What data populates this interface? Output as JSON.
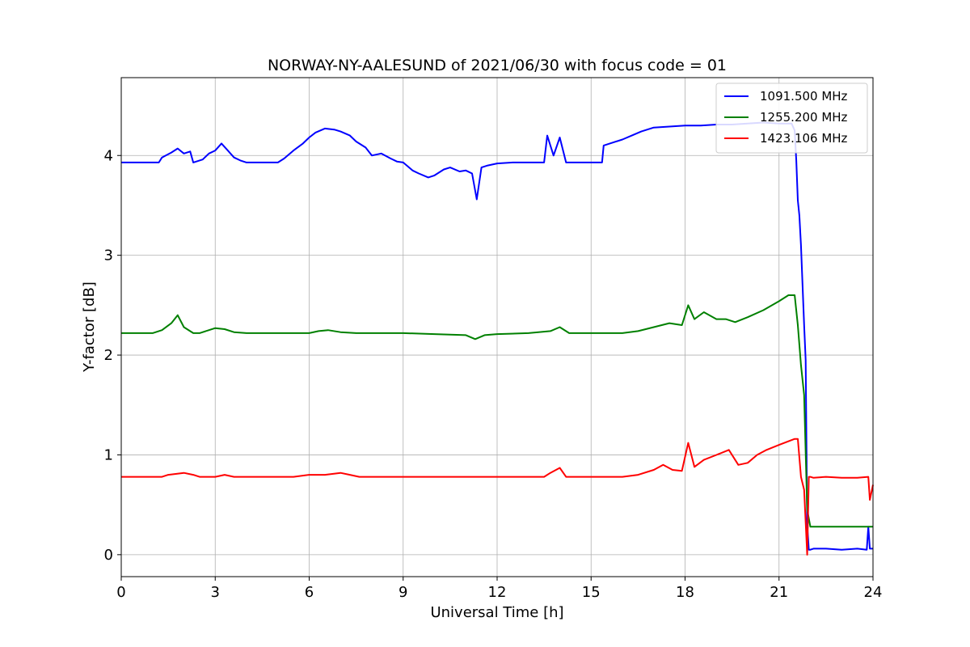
{
  "chart_data": {
    "type": "line",
    "title": "NORWAY-NY-AALESUND of 2021/06/30 with focus code = 01",
    "xlabel": "Universal Time [h]",
    "ylabel": "Y-factor [dB]",
    "xlim": [
      0,
      24
    ],
    "ylim": [
      -0.22,
      4.78
    ],
    "xticks": [
      0,
      3,
      6,
      9,
      12,
      15,
      18,
      21,
      24
    ],
    "yticks": [
      0,
      1,
      2,
      3,
      4
    ],
    "grid": true,
    "legend_position": "top-right",
    "series": [
      {
        "name": "1091.500 MHz",
        "color": "#0000ff",
        "x": [
          0,
          1.2,
          1.3,
          1.6,
          1.8,
          2.0,
          2.2,
          2.3,
          2.4,
          2.6,
          2.8,
          3.0,
          3.2,
          3.4,
          3.6,
          3.8,
          4.0,
          4.5,
          5.0,
          5.2,
          5.5,
          5.8,
          6.0,
          6.2,
          6.5,
          6.8,
          7.0,
          7.3,
          7.5,
          7.8,
          8.0,
          8.3,
          8.6,
          8.8,
          9.0,
          9.3,
          9.5,
          9.8,
          10.0,
          10.3,
          10.5,
          10.8,
          11.0,
          11.2,
          11.35,
          11.5,
          11.7,
          12.0,
          12.5,
          13.0,
          13.5,
          13.6,
          13.8,
          14.0,
          14.2,
          14.5,
          15.0,
          15.35,
          15.4,
          15.6,
          16.0,
          16.3,
          16.6,
          17.0,
          17.5,
          18.0,
          18.5,
          19.0,
          19.5,
          20.0,
          20.5,
          21.0,
          21.4,
          21.5,
          21.55,
          21.6,
          21.65,
          21.7,
          21.8,
          21.85,
          21.9,
          21.95,
          22.0,
          22.1,
          22.5,
          23.0,
          23.5,
          23.8,
          23.85,
          23.9,
          24.0
        ],
        "y": [
          3.93,
          3.93,
          3.98,
          4.03,
          4.07,
          4.02,
          4.04,
          3.93,
          3.94,
          3.96,
          4.02,
          4.05,
          4.12,
          4.05,
          3.98,
          3.95,
          3.93,
          3.93,
          3.93,
          3.97,
          4.05,
          4.12,
          4.18,
          4.23,
          4.27,
          4.26,
          4.24,
          4.2,
          4.14,
          4.08,
          4.0,
          4.02,
          3.97,
          3.94,
          3.93,
          3.85,
          3.82,
          3.78,
          3.8,
          3.86,
          3.88,
          3.84,
          3.85,
          3.82,
          3.56,
          3.88,
          3.9,
          3.92,
          3.93,
          3.93,
          3.93,
          4.2,
          4.0,
          4.18,
          3.93,
          3.93,
          3.93,
          3.93,
          4.1,
          4.12,
          4.16,
          4.2,
          4.24,
          4.28,
          4.29,
          4.3,
          4.3,
          4.31,
          4.31,
          4.32,
          4.33,
          4.32,
          4.32,
          4.25,
          3.95,
          3.55,
          3.4,
          3.1,
          2.3,
          1.95,
          0.3,
          0.05,
          0.05,
          0.06,
          0.06,
          0.05,
          0.06,
          0.05,
          0.28,
          0.06,
          0.06
        ]
      },
      {
        "name": "1255.200 MHz",
        "color": "#008000",
        "x": [
          0,
          1.0,
          1.3,
          1.6,
          1.8,
          2.0,
          2.3,
          2.5,
          2.8,
          3.0,
          3.3,
          3.6,
          4.0,
          5.0,
          6.0,
          6.3,
          6.6,
          7.0,
          7.5,
          8.0,
          9.0,
          10.0,
          11.0,
          11.3,
          11.6,
          12.0,
          13.0,
          13.7,
          14.0,
          14.3,
          15.0,
          16.0,
          16.5,
          17.0,
          17.5,
          17.9,
          18.1,
          18.3,
          18.6,
          19.0,
          19.3,
          19.6,
          20.0,
          20.5,
          21.0,
          21.3,
          21.5,
          21.6,
          21.7,
          21.8,
          21.9,
          22.0,
          23.0,
          24.0
        ],
        "y": [
          2.22,
          2.22,
          2.25,
          2.32,
          2.4,
          2.28,
          2.22,
          2.22,
          2.25,
          2.27,
          2.26,
          2.23,
          2.22,
          2.22,
          2.22,
          2.24,
          2.25,
          2.23,
          2.22,
          2.22,
          2.22,
          2.21,
          2.2,
          2.16,
          2.2,
          2.21,
          2.22,
          2.24,
          2.28,
          2.22,
          2.22,
          2.22,
          2.24,
          2.28,
          2.32,
          2.3,
          2.5,
          2.36,
          2.43,
          2.36,
          2.36,
          2.33,
          2.38,
          2.45,
          2.54,
          2.6,
          2.6,
          2.3,
          1.9,
          1.6,
          0.45,
          0.28,
          0.28,
          0.28
        ]
      },
      {
        "name": "1423.106 MHz",
        "color": "#ff0000",
        "x": [
          0,
          1.3,
          1.5,
          2.0,
          2.3,
          2.5,
          3.0,
          3.3,
          3.6,
          4.0,
          5.0,
          5.5,
          6.0,
          6.5,
          7.0,
          7.3,
          7.6,
          8.0,
          10.0,
          12.0,
          13.5,
          13.7,
          14.0,
          14.2,
          15.0,
          16.0,
          16.5,
          17.0,
          17.3,
          17.6,
          17.9,
          18.1,
          18.3,
          18.6,
          19.0,
          19.4,
          19.7,
          20.0,
          20.3,
          20.6,
          21.0,
          21.5,
          21.6,
          21.7,
          21.8,
          21.9,
          21.95,
          22.0,
          22.1,
          22.5,
          23.0,
          23.5,
          23.85,
          23.9,
          24.0
        ],
        "y": [
          0.78,
          0.78,
          0.8,
          0.82,
          0.8,
          0.78,
          0.78,
          0.8,
          0.78,
          0.78,
          0.78,
          0.78,
          0.8,
          0.8,
          0.82,
          0.8,
          0.78,
          0.78,
          0.78,
          0.78,
          0.78,
          0.82,
          0.87,
          0.78,
          0.78,
          0.78,
          0.8,
          0.85,
          0.9,
          0.85,
          0.84,
          1.12,
          0.88,
          0.95,
          1.0,
          1.05,
          0.9,
          0.92,
          1.0,
          1.05,
          1.1,
          1.16,
          1.16,
          0.78,
          0.65,
          0.0,
          0.78,
          0.78,
          0.77,
          0.78,
          0.77,
          0.77,
          0.78,
          0.55,
          0.7
        ]
      }
    ]
  }
}
